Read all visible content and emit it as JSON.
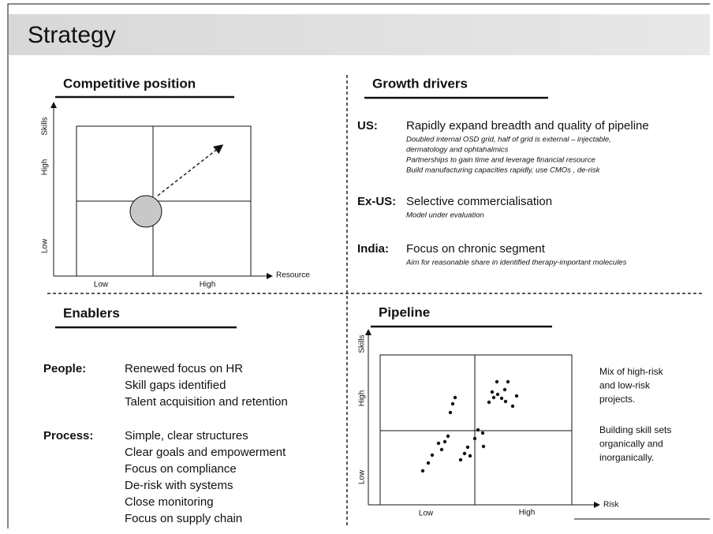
{
  "title": "Strategy",
  "competitive_position": {
    "title": "Competitive position",
    "y_axis": {
      "label": "Skills",
      "high": "High",
      "low": "Low"
    },
    "x_axis": {
      "label": "Resource",
      "low": "Low",
      "high": "High"
    }
  },
  "growth_drivers": {
    "title": "Growth drivers",
    "items": [
      {
        "region": "US:",
        "headline": "Rapidly expand breadth and quality of pipeline",
        "details": [
          "Doubled internal OSD grid, half of grid is external – injectable,",
          "dermatology and ophtahalmics",
          "Partnerships to gain time and leverage financial resource",
          "Build manufacturing capacities rapidly, use CMOs , de-risk"
        ]
      },
      {
        "region": "Ex-US:",
        "headline": "Selective commercialisation",
        "details": [
          "Model under evaluation"
        ]
      },
      {
        "region": "India:",
        "headline": "Focus on chronic segment",
        "details": [
          "Aim for reasonable share in identified therapy-important molecules"
        ]
      }
    ]
  },
  "enablers": {
    "title": "Enablers",
    "groups": [
      {
        "label": "People:",
        "items": [
          "Renewed focus on HR",
          "Skill gaps identified",
          "Talent acquisition and retention"
        ]
      },
      {
        "label": "Process:",
        "items": [
          "Simple, clear structures",
          "Clear goals and empowerment",
          "Focus on compliance",
          "De-risk with systems",
          "Close monitoring",
          "Focus on supply chain"
        ]
      }
    ]
  },
  "pipeline": {
    "title": "Pipeline",
    "y_axis": {
      "label": "Skills",
      "high": "High",
      "low": "Low"
    },
    "x_axis": {
      "label": "Risk",
      "low": "Low",
      "high": "High"
    },
    "notes": [
      [
        "Mix of high-risk",
        "and low-risk",
        "projects."
      ],
      [
        "Building skill sets",
        "organically and",
        "inorganically."
      ]
    ]
  }
}
